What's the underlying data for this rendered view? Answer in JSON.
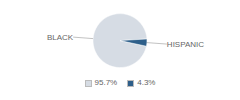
{
  "chart_data": {
    "type": "pie",
    "categories": [
      "BLACK",
      "HISPANIC"
    ],
    "values": [
      95.7,
      4.3
    ],
    "value_labels": [
      "95.7%",
      "4.3%"
    ],
    "colors": [
      "#d6dce4",
      "#2e5f8a"
    ],
    "legend": "bottom"
  }
}
